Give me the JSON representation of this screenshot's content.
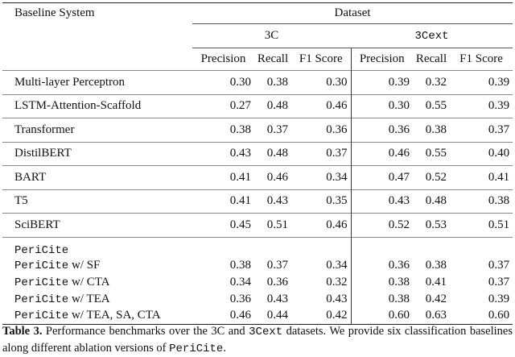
{
  "table": {
    "header": {
      "group": "Dataset",
      "stub": "Baseline System",
      "datasets": [
        "3C",
        "3Cext"
      ],
      "metrics": [
        "Precision",
        "Recall",
        "F1 Score",
        "Precision",
        "Recall",
        "F1 Score"
      ]
    },
    "rows": [
      {
        "label": "Multi-layer Perceptron",
        "values": [
          "0.30",
          "0.38",
          "0.30",
          "0.39",
          "0.32",
          "0.39"
        ]
      },
      {
        "label": "LSTM-Attention-Scaffold",
        "values": [
          "0.27",
          "0.48",
          "0.46",
          "0.30",
          "0.55",
          "0.39"
        ]
      },
      {
        "label": "Transformer",
        "values": [
          "0.38",
          "0.37",
          "0.36",
          "0.36",
          "0.38",
          "0.37"
        ]
      },
      {
        "label": "DistilBERT",
        "values": [
          "0.43",
          "0.48",
          "0.37",
          "0.46",
          "0.55",
          "0.40"
        ]
      },
      {
        "label": "BART",
        "values": [
          "0.41",
          "0.46",
          "0.34",
          "0.47",
          "0.52",
          "0.41"
        ]
      },
      {
        "label": "T5",
        "values": [
          "0.41",
          "0.43",
          "0.35",
          "0.43",
          "0.48",
          "0.38"
        ]
      },
      {
        "label": "SciBERT",
        "values": [
          "0.45",
          "0.51",
          "0.46",
          "0.52",
          "0.53",
          "0.51"
        ]
      },
      {
        "code": "PeriCite"
      },
      {
        "code": "PeriCite",
        "label": "w/ SF",
        "values": [
          "0.38",
          "0.37",
          "0.34",
          "0.36",
          "0.38",
          "0.37"
        ]
      },
      {
        "code": "PeriCite",
        "label": "w/ CTA",
        "values": [
          "0.34",
          "0.36",
          "0.32",
          "0.38",
          "0.41",
          "0.37"
        ]
      },
      {
        "code": "PeriCite",
        "label": "w/ TEA",
        "values": [
          "0.36",
          "0.43",
          "0.43",
          "0.38",
          "0.42",
          "0.39"
        ]
      },
      {
        "code": "PeriCite",
        "label": "w/ TEA, SA, CTA",
        "values": [
          "0.46",
          "0.44",
          "0.42",
          "0.60",
          "0.63",
          "0.60"
        ]
      }
    ]
  },
  "caption": [
    {
      "text": "Table 3.",
      "style": "bold"
    },
    {
      "text": " Performance benchmarks over the 3C and "
    },
    {
      "text": "3Cext",
      "style": "mono"
    },
    {
      "text": " datasets. We provide six classification baselines along different ablation versions of "
    },
    {
      "text": "PeriCite",
      "style": "mono"
    },
    {
      "text": "."
    }
  ]
}
